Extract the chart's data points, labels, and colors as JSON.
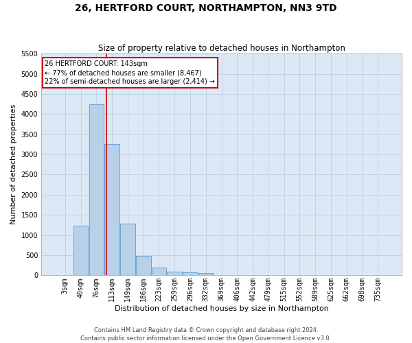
{
  "title": "26, HERTFORD COURT, NORTHAMPTON, NN3 9TD",
  "subtitle": "Size of property relative to detached houses in Northampton",
  "xlabel": "Distribution of detached houses by size in Northampton",
  "ylabel": "Number of detached properties",
  "footer_line1": "Contains HM Land Registry data © Crown copyright and database right 2024.",
  "footer_line2": "Contains public sector information licensed under the Open Government Licence v3.0.",
  "bar_labels": [
    "3sqm",
    "40sqm",
    "76sqm",
    "113sqm",
    "149sqm",
    "186sqm",
    "223sqm",
    "259sqm",
    "296sqm",
    "332sqm",
    "369sqm",
    "406sqm",
    "442sqm",
    "479sqm",
    "515sqm",
    "552sqm",
    "589sqm",
    "625sqm",
    "662sqm",
    "698sqm",
    "735sqm"
  ],
  "bar_values": [
    0,
    1230,
    4250,
    3250,
    1280,
    490,
    200,
    100,
    70,
    50,
    0,
    0,
    0,
    0,
    0,
    0,
    0,
    0,
    0,
    0,
    0
  ],
  "bar_color": "#b8d0e8",
  "bar_edge_color": "#5b9bd5",
  "ylim": [
    0,
    5500
  ],
  "yticks": [
    0,
    500,
    1000,
    1500,
    2000,
    2500,
    3000,
    3500,
    4000,
    4500,
    5000,
    5500
  ],
  "vline_x_index": 2.62,
  "vline_color": "#cc0000",
  "annotation_text": "26 HERTFORD COURT: 143sqm\n← 77% of detached houses are smaller (8,467)\n22% of semi-detached houses are larger (2,414) →",
  "annotation_box_color": "#ffffff",
  "annotation_box_edge": "#cc0000",
  "background_color": "#ffffff",
  "plot_bg_color": "#dce8f5",
  "grid_color": "#c0cfe0",
  "title_fontsize": 10,
  "subtitle_fontsize": 8.5,
  "axis_label_fontsize": 8,
  "tick_fontsize": 7,
  "footer_fontsize": 6
}
